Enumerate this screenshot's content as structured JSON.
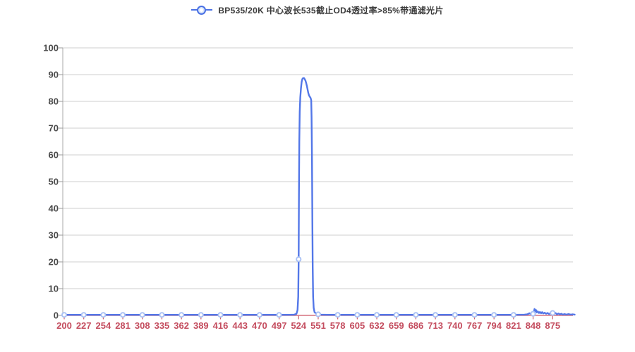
{
  "legend": {
    "label": "BP535/20K 中心波长535截止OD4透过率>85%带通滤光片"
  },
  "colors": {
    "background": "#ffffff",
    "series_line": "#5377e8",
    "marker_fill": "#ffffff",
    "marker_ring": "#a9c1f4",
    "legend_marker": "#4a71e4",
    "grid": "#cfcfcf",
    "y_axis": "#a8a8a8",
    "y_tick": "#9a9a9a",
    "y_label": "#4a4a4a",
    "x_axis": "#d6707e",
    "x_tick": "#c95f6e",
    "x_label": "#c44d5f",
    "title": "#3a3a3a"
  },
  "chart_data": {
    "type": "line",
    "title": "BP535/20K 中心波长535截止OD4透过率>85%带通滤光片",
    "xlabel": "",
    "ylabel": "",
    "grid": "horizontal",
    "legend_position": "top-center",
    "ylim": [
      0,
      100
    ],
    "y_tick_step": 10,
    "x_ticks": [
      200,
      227,
      254,
      281,
      308,
      335,
      362,
      389,
      416,
      443,
      470,
      497,
      524,
      551,
      578,
      605,
      632,
      659,
      686,
      713,
      740,
      767,
      794,
      821,
      848,
      875
    ],
    "series": [
      {
        "name": "BP535/20K 中心波长535截止OD4透过率>85%带通滤光片",
        "marker_values": [
          0.2,
          0.2,
          0.2,
          0.2,
          0.2,
          0.2,
          0.2,
          0.2,
          0.2,
          0.2,
          0.2,
          0.2,
          21,
          0.4,
          0.2,
          0.2,
          0.2,
          0.2,
          0.2,
          0.2,
          0.2,
          0.2,
          0.2,
          0.2,
          0.6,
          0.9
        ],
        "points": [
          [
            200,
            0.2
          ],
          [
            227,
            0.2
          ],
          [
            254,
            0.2
          ],
          [
            281,
            0.2
          ],
          [
            308,
            0.2
          ],
          [
            335,
            0.2
          ],
          [
            362,
            0.2
          ],
          [
            389,
            0.2
          ],
          [
            416,
            0.2
          ],
          [
            443,
            0.2
          ],
          [
            470,
            0.2
          ],
          [
            497,
            0.2
          ],
          [
            510,
            0.2
          ],
          [
            518,
            0.3
          ],
          [
            521,
            0.6
          ],
          [
            522.5,
            2
          ],
          [
            523.4,
            7
          ],
          [
            524,
            21
          ],
          [
            524.4,
            45
          ],
          [
            524.9,
            65
          ],
          [
            525.5,
            76
          ],
          [
            526.3,
            81.5
          ],
          [
            527.2,
            85
          ],
          [
            528.2,
            87.4
          ],
          [
            529.2,
            88.4
          ],
          [
            530.2,
            88.7
          ],
          [
            531.4,
            88.7
          ],
          [
            532.4,
            88.3
          ],
          [
            533.4,
            87.8
          ],
          [
            534.4,
            86.9
          ],
          [
            535.4,
            85.7
          ],
          [
            536.4,
            84.4
          ],
          [
            537.4,
            83.1
          ],
          [
            538.4,
            82.2
          ],
          [
            539.5,
            81.7
          ],
          [
            540.6,
            81.2
          ],
          [
            541.4,
            80.4
          ],
          [
            541.9,
            74
          ],
          [
            542.4,
            58
          ],
          [
            542.9,
            36
          ],
          [
            543.4,
            18
          ],
          [
            544,
            7
          ],
          [
            544.8,
            2.8
          ],
          [
            546,
            1.2
          ],
          [
            548,
            0.7
          ],
          [
            551,
            0.4
          ],
          [
            555,
            0.3
          ],
          [
            565,
            0.2
          ],
          [
            578,
            0.2
          ],
          [
            605,
            0.2
          ],
          [
            632,
            0.2
          ],
          [
            659,
            0.2
          ],
          [
            686,
            0.2
          ],
          [
            713,
            0.2
          ],
          [
            740,
            0.2
          ],
          [
            767,
            0.2
          ],
          [
            794,
            0.2
          ],
          [
            821,
            0.2
          ],
          [
            836,
            0.3
          ],
          [
            840,
            0.4
          ],
          [
            843,
            0.8
          ],
          [
            845,
            0.5
          ],
          [
            847.5,
            0.6
          ],
          [
            849,
            1.1
          ],
          [
            850,
            2.4
          ],
          [
            851,
            1.5
          ],
          [
            852,
            2.0
          ],
          [
            853,
            1.1
          ],
          [
            854.5,
            1.5
          ],
          [
            856,
            0.9
          ],
          [
            857.5,
            1.3
          ],
          [
            859,
            0.8
          ],
          [
            860.5,
            1.2
          ],
          [
            862,
            0.7
          ],
          [
            864,
            1.0
          ],
          [
            866,
            0.6
          ],
          [
            868,
            0.9
          ],
          [
            870,
            0.5
          ],
          [
            872,
            0.8
          ],
          [
            875,
            0.9
          ],
          [
            877,
            0.6
          ],
          [
            879,
            0.9
          ],
          [
            881,
            0.4
          ],
          [
            883,
            0.7
          ],
          [
            885,
            0.4
          ],
          [
            887,
            0.6
          ],
          [
            889,
            0.3
          ],
          [
            891.5,
            0.5
          ],
          [
            894,
            0.3
          ],
          [
            897,
            0.5
          ],
          [
            900,
            0.3
          ],
          [
            903,
            0.4
          ],
          [
            905.5,
            0.3
          ]
        ]
      }
    ]
  }
}
